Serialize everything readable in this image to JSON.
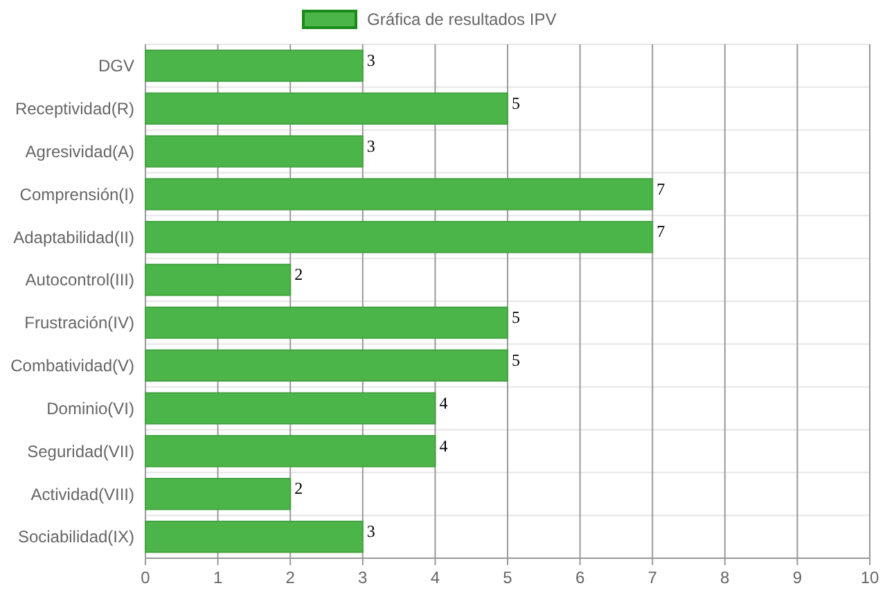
{
  "chart_data": {
    "type": "bar",
    "orientation": "horizontal",
    "categories": [
      "DGV",
      "Receptividad(R)",
      "Agresividad(A)",
      "Comprensión(I)",
      "Adaptabilidad(II)",
      "Autocontrol(III)",
      "Frustración(IV)",
      "Combatividad(V)",
      "Dominio(VI)",
      "Seguridad(VII)",
      "Actividad(VIII)",
      "Sociabilidad(IX)"
    ],
    "series": [
      {
        "name": "Gráfica de resultados IPV",
        "color": "#4cb54a",
        "values": [
          3,
          5,
          3,
          7,
          7,
          2,
          5,
          5,
          4,
          4,
          2,
          3
        ]
      }
    ],
    "xlim": [
      0,
      10
    ],
    "xticks": [
      0,
      1,
      2,
      3,
      4,
      5,
      6,
      7,
      8,
      9,
      10
    ],
    "grid": true,
    "legend": "top",
    "data_labels": true
  }
}
